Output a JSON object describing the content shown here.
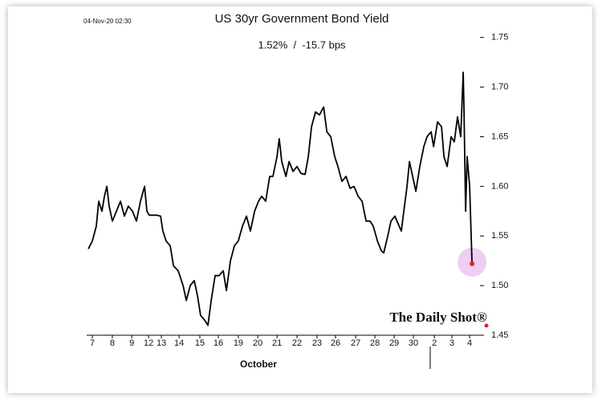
{
  "chart_data": {
    "type": "line",
    "title": "US 30yr Government Bond Yield",
    "subtitle": "1.52%  /  -15.7 bps",
    "timestamp": "04-Nov-20 02:30",
    "x_label": "October",
    "source": "The Daily Shot®",
    "color": "#000000",
    "marker_color": "#e0202a",
    "highlight_color": "#e8b8f0",
    "xlim": [
      -0.3,
      20.55
    ],
    "ylim": [
      1.45,
      1.77
    ],
    "yticks": [
      {
        "value": 1.45,
        "label": "1.45"
      },
      {
        "value": 1.5,
        "label": "1.50"
      },
      {
        "value": 1.55,
        "label": "1.55"
      },
      {
        "value": 1.6,
        "label": "1.60"
      },
      {
        "value": 1.65,
        "label": "1.65"
      },
      {
        "value": 1.7,
        "label": "1.70"
      },
      {
        "value": 1.75,
        "label": "1.75"
      }
    ],
    "xticks": [
      {
        "value": 0,
        "label": "7"
      },
      {
        "value": 1.06,
        "label": "8"
      },
      {
        "value": 2.09,
        "label": "9"
      },
      {
        "value": 2.98,
        "label": "12"
      },
      {
        "value": 3.66,
        "label": "13"
      },
      {
        "value": 4.6,
        "label": "14"
      },
      {
        "value": 5.7,
        "label": "15"
      },
      {
        "value": 6.68,
        "label": "16"
      },
      {
        "value": 7.74,
        "label": "19"
      },
      {
        "value": 8.77,
        "label": "20"
      },
      {
        "value": 9.79,
        "label": "21"
      },
      {
        "value": 10.85,
        "label": "22"
      },
      {
        "value": 11.91,
        "label": "23"
      },
      {
        "value": 12.89,
        "label": "26"
      },
      {
        "value": 13.96,
        "label": "27"
      },
      {
        "value": 14.98,
        "label": "28"
      },
      {
        "value": 16.0,
        "label": "29"
      },
      {
        "value": 17.02,
        "label": "30"
      },
      {
        "value": 18.13,
        "label": "2"
      },
      {
        "value": 19.06,
        "label": "3"
      },
      {
        "value": 20.0,
        "label": "4"
      }
    ],
    "x": [
      -0.21,
      0,
      0.21,
      0.34,
      0.51,
      0.64,
      0.77,
      0.89,
      1.06,
      1.28,
      1.49,
      1.7,
      1.91,
      2.13,
      2.34,
      2.55,
      2.77,
      2.89,
      3.02,
      3.4,
      3.62,
      3.74,
      3.91,
      4.13,
      4.3,
      4.55,
      4.81,
      4.98,
      5.19,
      5.4,
      5.57,
      5.74,
      5.96,
      6.13,
      6.3,
      6.51,
      6.72,
      6.94,
      7.11,
      7.32,
      7.53,
      7.74,
      7.96,
      8.17,
      8.38,
      8.6,
      8.81,
      8.98,
      9.19,
      9.4,
      9.57,
      9.79,
      9.91,
      10.04,
      10.26,
      10.43,
      10.64,
      10.85,
      11.06,
      11.28,
      11.45,
      11.62,
      11.83,
      12.04,
      12.26,
      12.43,
      12.64,
      12.85,
      13.02,
      13.23,
      13.45,
      13.66,
      13.87,
      14.09,
      14.3,
      14.51,
      14.72,
      14.89,
      15.11,
      15.32,
      15.45,
      15.66,
      15.83,
      16.04,
      16.26,
      16.38,
      16.51,
      16.68,
      16.81,
      16.98,
      17.15,
      17.36,
      17.57,
      17.74,
      17.96,
      18.09,
      18.3,
      18.51,
      18.64,
      18.81,
      19.02,
      19.19,
      19.36,
      19.53,
      19.66,
      19.7,
      19.79,
      19.87,
      20.0,
      20.13
    ],
    "values": [
      1.537,
      1.545,
      1.56,
      1.585,
      1.575,
      1.59,
      1.6,
      1.58,
      1.565,
      1.575,
      1.585,
      1.57,
      1.58,
      1.575,
      1.565,
      1.585,
      1.6,
      1.575,
      1.571,
      1.571,
      1.57,
      1.555,
      1.545,
      1.54,
      1.52,
      1.515,
      1.5,
      1.485,
      1.5,
      1.505,
      1.49,
      1.47,
      1.465,
      1.46,
      1.485,
      1.51,
      1.51,
      1.515,
      1.495,
      1.525,
      1.54,
      1.545,
      1.56,
      1.57,
      1.555,
      1.575,
      1.585,
      1.59,
      1.585,
      1.61,
      1.61,
      1.63,
      1.648,
      1.625,
      1.61,
      1.625,
      1.615,
      1.62,
      1.613,
      1.612,
      1.63,
      1.66,
      1.675,
      1.672,
      1.68,
      1.655,
      1.65,
      1.63,
      1.62,
      1.605,
      1.61,
      1.598,
      1.6,
      1.59,
      1.585,
      1.565,
      1.565,
      1.56,
      1.545,
      1.535,
      1.533,
      1.55,
      1.565,
      1.57,
      1.56,
      1.555,
      1.575,
      1.6,
      1.625,
      1.61,
      1.595,
      1.62,
      1.64,
      1.65,
      1.655,
      1.64,
      1.665,
      1.66,
      1.63,
      1.62,
      1.65,
      1.645,
      1.67,
      1.65,
      1.715,
      1.68,
      1.575,
      1.63,
      1.6,
      1.522
    ]
  }
}
